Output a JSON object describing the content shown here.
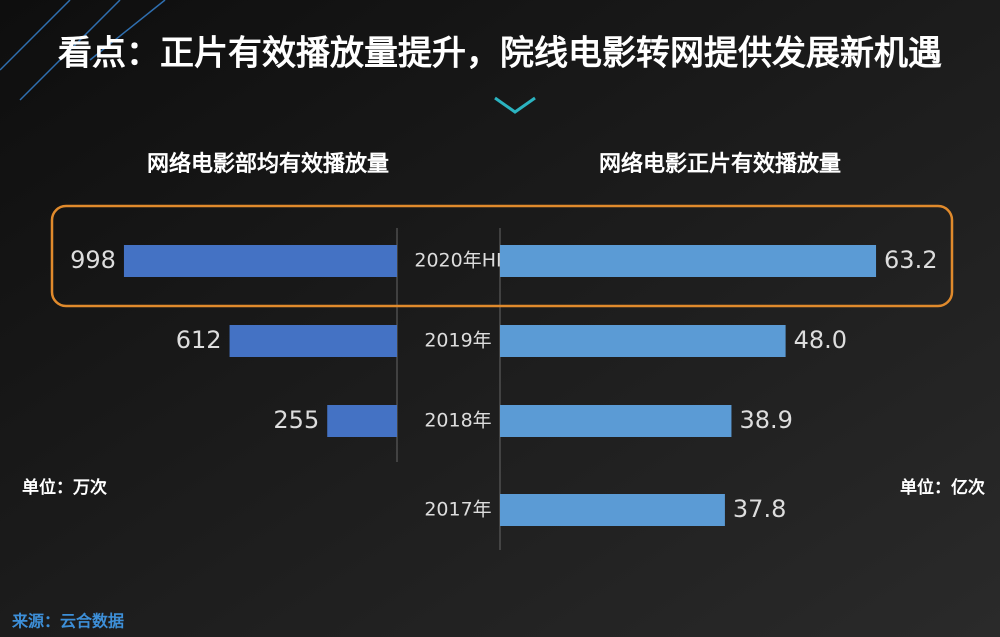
{
  "chart_data": {
    "type": "butterfly-bar",
    "title": "看点：正片有效播放量提升，院线电影转网提供发展新机遇",
    "categories": [
      "2020年HI",
      "2019年",
      "2018年",
      "2017年"
    ],
    "series": [
      {
        "name": "网络电影部均有效播放量",
        "color": "#4472c4",
        "values": [
          998,
          612,
          255,
          null
        ],
        "unit": "单位：万次"
      },
      {
        "name": "网络电影正片有效播放量",
        "color": "#5b9bd5",
        "values": [
          63.2,
          48.0,
          38.9,
          37.8
        ],
        "value_labels": [
          "63.2",
          "48.0",
          "38.9",
          "37.8"
        ],
        "unit": "单位：亿次"
      }
    ],
    "source": "来源：云合数据"
  }
}
